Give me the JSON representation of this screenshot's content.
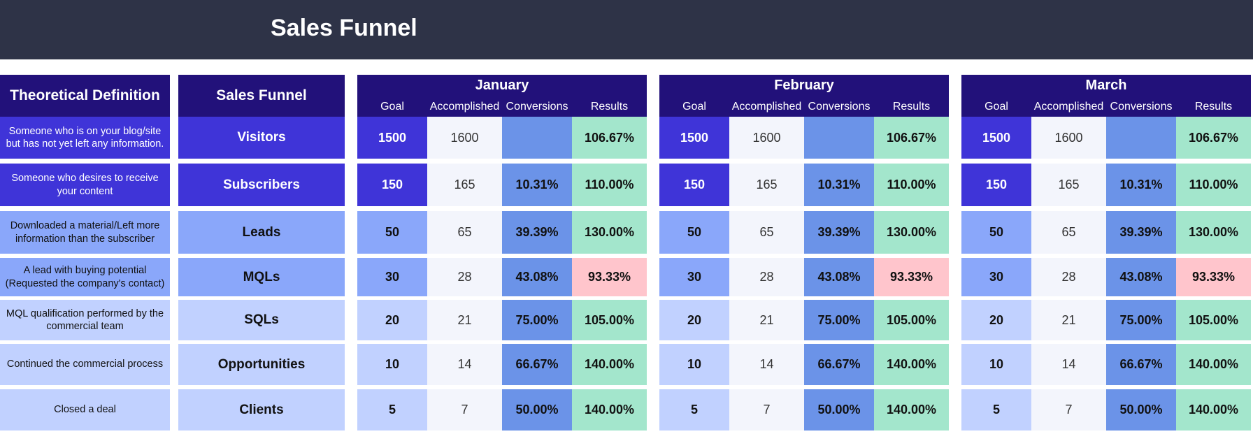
{
  "header": {
    "title": "Sales Funnel"
  },
  "columns": {
    "definition_header": "Theoretical Definition",
    "funnel_header": "Sales Funnel",
    "goal": "Goal",
    "accomplished": "Accomplished",
    "conversions": "Conversions",
    "results": "Results"
  },
  "stages": [
    {
      "name": "Visitors",
      "definition": "Someone who is on your blog/site but has not yet left any information.",
      "tier": "dark"
    },
    {
      "name": "Subscribers",
      "definition": "Someone who desires to receive your content",
      "tier": "dark"
    },
    {
      "name": "Leads",
      "definition": "Downloaded a material/Left more information than the subscriber",
      "tier": "mid"
    },
    {
      "name": "MQLs",
      "definition": "A lead with buying potential (Requested the company's contact)",
      "tier": "mid"
    },
    {
      "name": "SQLs",
      "definition": "MQL qualification performed by the commercial team",
      "tier": "light"
    },
    {
      "name": "Opportunities",
      "definition": "Continued the commercial process",
      "tier": "light"
    },
    {
      "name": "Clients",
      "definition": "Closed a deal",
      "tier": "light"
    }
  ],
  "months": [
    {
      "name": "January",
      "rows": [
        {
          "goal": "1500",
          "accomplished": "1600",
          "conversion": "",
          "result": "106.67%",
          "result_status": "good"
        },
        {
          "goal": "150",
          "accomplished": "165",
          "conversion": "10.31%",
          "result": "110.00%",
          "result_status": "good"
        },
        {
          "goal": "50",
          "accomplished": "65",
          "conversion": "39.39%",
          "result": "130.00%",
          "result_status": "good"
        },
        {
          "goal": "30",
          "accomplished": "28",
          "conversion": "43.08%",
          "result": "93.33%",
          "result_status": "bad"
        },
        {
          "goal": "20",
          "accomplished": "21",
          "conversion": "75.00%",
          "result": "105.00%",
          "result_status": "good"
        },
        {
          "goal": "10",
          "accomplished": "14",
          "conversion": "66.67%",
          "result": "140.00%",
          "result_status": "good"
        },
        {
          "goal": "5",
          "accomplished": "7",
          "conversion": "50.00%",
          "result": "140.00%",
          "result_status": "good"
        }
      ]
    },
    {
      "name": "February",
      "rows": [
        {
          "goal": "1500",
          "accomplished": "1600",
          "conversion": "",
          "result": "106.67%",
          "result_status": "good"
        },
        {
          "goal": "150",
          "accomplished": "165",
          "conversion": "10.31%",
          "result": "110.00%",
          "result_status": "good"
        },
        {
          "goal": "50",
          "accomplished": "65",
          "conversion": "39.39%",
          "result": "130.00%",
          "result_status": "good"
        },
        {
          "goal": "30",
          "accomplished": "28",
          "conversion": "43.08%",
          "result": "93.33%",
          "result_status": "bad"
        },
        {
          "goal": "20",
          "accomplished": "21",
          "conversion": "75.00%",
          "result": "105.00%",
          "result_status": "good"
        },
        {
          "goal": "10",
          "accomplished": "14",
          "conversion": "66.67%",
          "result": "140.00%",
          "result_status": "good"
        },
        {
          "goal": "5",
          "accomplished": "7",
          "conversion": "50.00%",
          "result": "140.00%",
          "result_status": "good"
        }
      ]
    },
    {
      "name": "March",
      "rows": [
        {
          "goal": "1500",
          "accomplished": "1600",
          "conversion": "",
          "result": "106.67%",
          "result_status": "good"
        },
        {
          "goal": "150",
          "accomplished": "165",
          "conversion": "10.31%",
          "result": "110.00%",
          "result_status": "good"
        },
        {
          "goal": "50",
          "accomplished": "65",
          "conversion": "39.39%",
          "result": "130.00%",
          "result_status": "good"
        },
        {
          "goal": "30",
          "accomplished": "28",
          "conversion": "43.08%",
          "result": "93.33%",
          "result_status": "bad"
        },
        {
          "goal": "20",
          "accomplished": "21",
          "conversion": "75.00%",
          "result": "105.00%",
          "result_status": "good"
        },
        {
          "goal": "10",
          "accomplished": "14",
          "conversion": "66.67%",
          "result": "140.00%",
          "result_status": "good"
        },
        {
          "goal": "5",
          "accomplished": "7",
          "conversion": "50.00%",
          "result": "140.00%",
          "result_status": "good"
        }
      ]
    }
  ],
  "colors": {
    "topbar": "#2e3347",
    "header": "#22117a",
    "tier_dark": "#3f34d8",
    "tier_mid": "#8aa7fa",
    "tier_light": "#c1d1ff",
    "accomplished_bg": "#f3f5fc",
    "conversion_bg": "#6b93e8",
    "result_good": "#a3e6cc",
    "result_bad": "#ffc5cc"
  }
}
